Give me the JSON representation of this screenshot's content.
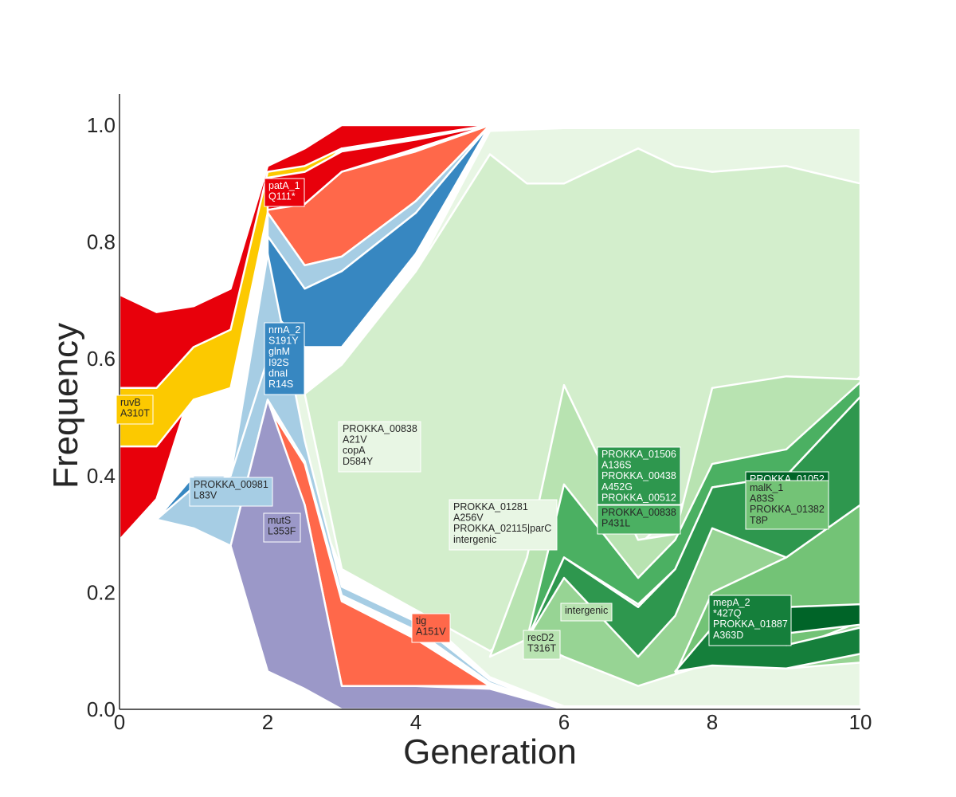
{
  "chart_data": {
    "type": "area",
    "title": "",
    "xlabel": "Generation",
    "ylabel": "Frequency",
    "xlim": [
      0,
      10
    ],
    "ylim": [
      0,
      1.05
    ],
    "xticks": [
      "0",
      "2",
      "4",
      "6",
      "8",
      "10"
    ],
    "yticks": [
      "0.0",
      "0.2",
      "0.4",
      "0.6",
      "0.8",
      "1.0"
    ],
    "grid": false,
    "legend": "none",
    "series": [
      {
        "color": "#e8000b",
        "upper": [
          [
            0,
            0.71
          ],
          [
            0.5,
            0.68
          ],
          [
            1,
            0.69
          ],
          [
            1.5,
            0.72
          ],
          [
            2,
            0.93
          ],
          [
            2.5,
            0.96
          ],
          [
            3,
            1.0
          ],
          [
            4,
            1.0
          ],
          [
            5,
            1.0
          ]
        ],
        "lower": [
          [
            0,
            0.29
          ],
          [
            0.5,
            0.36
          ],
          [
            1,
            0.56
          ],
          [
            1.5,
            0.62
          ],
          [
            2,
            0.89
          ],
          [
            2.5,
            0.9
          ],
          [
            3,
            0.96
          ],
          [
            4,
            0.98
          ],
          [
            5,
            1.0
          ]
        ]
      },
      {
        "color": "#fcc900",
        "upper": [
          [
            0,
            0.55
          ],
          [
            0.5,
            0.55
          ],
          [
            1,
            0.62
          ],
          [
            1.5,
            0.65
          ],
          [
            2,
            0.92
          ],
          [
            2.5,
            0.93
          ],
          [
            3,
            0.96
          ]
        ],
        "lower": [
          [
            0,
            0.45
          ],
          [
            0.5,
            0.45
          ],
          [
            1,
            0.53
          ],
          [
            1.5,
            0.55
          ],
          [
            2,
            0.85
          ]
        ]
      },
      {
        "color": "#e8000b",
        "upper": [
          [
            2,
            0.91
          ],
          [
            2.5,
            0.92
          ],
          [
            3,
            0.955
          ],
          [
            4,
            0.975
          ],
          [
            5,
            1.0
          ]
        ],
        "lower": [
          [
            2,
            0.855
          ],
          [
            2.5,
            0.865
          ],
          [
            3,
            0.92
          ],
          [
            4,
            0.96
          ],
          [
            5,
            1.0
          ]
        ]
      },
      {
        "color": "#ff684a",
        "upper": [
          [
            2,
            0.855
          ],
          [
            2.5,
            0.865
          ],
          [
            3,
            0.92
          ],
          [
            4,
            0.955
          ],
          [
            5,
            1.0
          ]
        ],
        "lower": [
          [
            2,
            0.85
          ],
          [
            2.5,
            0.76
          ],
          [
            3,
            0.775
          ],
          [
            4,
            0.87
          ],
          [
            5,
            1.0
          ]
        ]
      },
      {
        "color": "#a6cde4",
        "upper": [
          [
            2,
            0.85
          ],
          [
            2.5,
            0.76
          ],
          [
            3,
            0.775
          ],
          [
            4,
            0.87
          ],
          [
            5,
            1.0
          ]
        ],
        "lower": [
          [
            2,
            0.81
          ],
          [
            2.5,
            0.72
          ],
          [
            3,
            0.75
          ],
          [
            4,
            0.85
          ],
          [
            5,
            1.0
          ]
        ]
      },
      {
        "color": "#3787c1",
        "upper": [
          [
            2,
            0.81
          ],
          [
            2.5,
            0.72
          ],
          [
            3,
            0.75
          ],
          [
            4,
            0.85
          ],
          [
            5,
            1.0
          ]
        ],
        "lower": [
          [
            2,
            0.69
          ],
          [
            2.5,
            0.62
          ],
          [
            3,
            0.62
          ],
          [
            4,
            0.78
          ],
          [
            5,
            1.0
          ]
        ]
      },
      {
        "color": "#e8f6e4",
        "upper": [
          [
            2,
            0.69
          ],
          [
            2.5,
            0.54
          ],
          [
            3,
            0.59
          ],
          [
            4,
            0.75
          ],
          [
            5,
            0.99
          ],
          [
            6,
            0.995
          ],
          [
            7,
            0.995
          ],
          [
            8,
            0.995
          ],
          [
            9,
            0.995
          ],
          [
            10,
            0.995
          ]
        ],
        "lower": [
          [
            2,
            0.54
          ],
          [
            3,
            0.24
          ],
          [
            4,
            0.17
          ],
          [
            5,
            0.055
          ],
          [
            6,
            0.005
          ],
          [
            10,
            0.005
          ]
        ]
      },
      {
        "color": "#d3eecc",
        "upper": [
          [
            2.5,
            0.54
          ],
          [
            3,
            0.59
          ],
          [
            4,
            0.75
          ],
          [
            5,
            0.95
          ],
          [
            5.5,
            0.9
          ],
          [
            6,
            0.9
          ],
          [
            7,
            0.96
          ],
          [
            7.5,
            0.93
          ],
          [
            8,
            0.92
          ],
          [
            9,
            0.93
          ],
          [
            10,
            0.9
          ]
        ],
        "lower": [
          [
            2.5,
            0.54
          ],
          [
            3,
            0.24
          ],
          [
            4,
            0.17
          ],
          [
            5,
            0.1
          ],
          [
            5.5,
            0.14
          ],
          [
            6,
            0.27
          ],
          [
            7,
            0.28
          ],
          [
            8,
            0.4
          ],
          [
            9,
            0.45
          ],
          [
            10,
            0.57
          ]
        ]
      },
      {
        "color": "#b8e3b1",
        "upper": [
          [
            5,
            0.09
          ],
          [
            5.5,
            0.26
          ],
          [
            6,
            0.555
          ],
          [
            7,
            0.29
          ],
          [
            7.5,
            0.3
          ],
          [
            8,
            0.55
          ],
          [
            9,
            0.57
          ],
          [
            10,
            0.565
          ]
        ],
        "lower": [
          [
            5,
            0.09
          ],
          [
            5.5,
            0.12
          ],
          [
            6,
            0.24
          ],
          [
            7,
            0.12
          ],
          [
            7.5,
            0.12
          ],
          [
            8,
            0.3
          ],
          [
            9,
            0.4
          ],
          [
            10,
            0.55
          ]
        ]
      },
      {
        "color": "#97d494",
        "upper": [
          [
            5.5,
            0.12
          ],
          [
            6,
            0.23
          ],
          [
            7,
            0.11
          ],
          [
            7.5,
            0.2
          ],
          [
            8,
            0.32
          ],
          [
            9,
            0.4
          ],
          [
            10,
            0.52
          ]
        ],
        "lower": [
          [
            5.5,
            0.12
          ],
          [
            6,
            0.09
          ],
          [
            7,
            0.04
          ],
          [
            7.5,
            0.06
          ],
          [
            8,
            0.08
          ],
          [
            9,
            0.07
          ],
          [
            10,
            0.08
          ]
        ]
      },
      {
        "color": "#73c376",
        "upper": [
          [
            7.5,
            0.06
          ],
          [
            8,
            0.2
          ],
          [
            9,
            0.26
          ],
          [
            10,
            0.35
          ]
        ],
        "lower": [
          [
            7.5,
            0.06
          ],
          [
            8,
            0.12
          ],
          [
            9,
            0.1
          ],
          [
            10,
            0.15
          ]
        ]
      },
      {
        "color": "#4bb062",
        "upper": [
          [
            5.5,
            0.12
          ],
          [
            6,
            0.385
          ],
          [
            7,
            0.225
          ],
          [
            7.5,
            0.29
          ],
          [
            8,
            0.42
          ],
          [
            9,
            0.445
          ],
          [
            10,
            0.56
          ]
        ],
        "lower": [
          [
            5.5,
            0.12
          ],
          [
            6,
            0.26
          ],
          [
            7,
            0.18
          ],
          [
            7.5,
            0.24
          ],
          [
            8,
            0.38
          ],
          [
            9,
            0.4
          ],
          [
            10,
            0.535
          ]
        ]
      },
      {
        "color": "#2e974e",
        "upper": [
          [
            5.5,
            0.12
          ],
          [
            6,
            0.26
          ],
          [
            7,
            0.175
          ],
          [
            7.5,
            0.24
          ],
          [
            8,
            0.38
          ],
          [
            9,
            0.4
          ],
          [
            10,
            0.535
          ]
        ],
        "lower": [
          [
            5.5,
            0.12
          ],
          [
            6,
            0.225
          ],
          [
            7,
            0.09
          ],
          [
            7.5,
            0.16
          ],
          [
            8,
            0.31
          ],
          [
            9,
            0.26
          ],
          [
            10,
            0.35
          ]
        ]
      },
      {
        "color": "#157f3b",
        "upper": [
          [
            7.5,
            0.065
          ],
          [
            8,
            0.14
          ],
          [
            9,
            0.11
          ],
          [
            10,
            0.14
          ]
        ],
        "lower": [
          [
            7.5,
            0.065
          ],
          [
            8,
            0.075
          ],
          [
            9,
            0.07
          ],
          [
            10,
            0.095
          ]
        ]
      },
      {
        "color": "#006428",
        "upper": [
          [
            8,
            0.17
          ],
          [
            9,
            0.175
          ],
          [
            10,
            0.18
          ]
        ],
        "lower": [
          [
            8,
            0.12
          ],
          [
            9,
            0.13
          ],
          [
            10,
            0.145
          ]
        ]
      },
      {
        "color": "#a6cde4",
        "upper": [
          [
            0.5,
            0.325
          ],
          [
            1,
            0.4
          ],
          [
            1.5,
            0.4
          ],
          [
            2,
            0.78
          ],
          [
            2.5,
            0.46
          ],
          [
            3,
            0.21
          ],
          [
            4,
            0.15
          ],
          [
            5,
            0.05
          ],
          [
            6,
            0.0
          ]
        ],
        "lower": [
          [
            0.5,
            0.325
          ],
          [
            1,
            0.31
          ],
          [
            1.5,
            0.28
          ],
          [
            2,
            0.53
          ],
          [
            2.5,
            0.425
          ],
          [
            3,
            0.195
          ],
          [
            4,
            0.135
          ],
          [
            5,
            0.045
          ],
          [
            6,
            0.0
          ]
        ]
      },
      {
        "color": "#3787c1",
        "upper": [
          [
            0.5,
            0.325
          ],
          [
            1,
            0.38
          ],
          [
            1.5,
            0.4
          ],
          [
            2,
            0.6
          ]
        ],
        "lower": [
          [
            0.5,
            0.325
          ],
          [
            1,
            0.4
          ],
          [
            1.5,
            0.4
          ],
          [
            2,
            0.6
          ]
        ]
      },
      {
        "color": "#ff684a",
        "upper": [
          [
            2,
            0.52
          ],
          [
            2.5,
            0.42
          ],
          [
            3,
            0.185
          ],
          [
            4,
            0.12
          ],
          [
            5,
            0.04
          ]
        ],
        "lower": [
          [
            2,
            0.52
          ],
          [
            2.5,
            0.35
          ],
          [
            3,
            0.04
          ],
          [
            4,
            0.04
          ],
          [
            5,
            0.04
          ]
        ]
      },
      {
        "color": "#9b98c8",
        "upper": [
          [
            1.5,
            0.28
          ],
          [
            2,
            0.53
          ],
          [
            2.5,
            0.35
          ],
          [
            3,
            0.04
          ],
          [
            4,
            0.04
          ],
          [
            5,
            0.035
          ],
          [
            6,
            0.0
          ]
        ],
        "lower": [
          [
            1.5,
            0.28
          ],
          [
            2,
            0.065
          ],
          [
            2.5,
            0.035
          ],
          [
            3,
            0.0
          ],
          [
            6,
            0.0
          ]
        ]
      }
    ],
    "annotations": [
      {
        "lines": [
          "patA_1",
          "Q111*"
        ],
        "bg": "#e8000b",
        "fg": "#ffffff"
      },
      {
        "lines": [
          "ruvB",
          "A310T"
        ],
        "bg": "#fcc900",
        "fg": "#262626"
      },
      {
        "lines": [
          "nrnA_2",
          "S191Y",
          "glnM",
          "I92S",
          "dnaI",
          "R14S"
        ],
        "bg": "#3787c1",
        "fg": "#ffffff"
      },
      {
        "lines": [
          "PROKKA_00981",
          "L83V"
        ],
        "bg": "#a6cde4",
        "fg": "#262626"
      },
      {
        "lines": [
          "mutS",
          "L353F"
        ],
        "bg": "#9b98c8",
        "fg": "#262626"
      },
      {
        "lines": [
          "PROKKA_00838",
          "A21V",
          "copA",
          "D584Y"
        ],
        "bg": "#e8f6e4",
        "fg": "#262626"
      },
      {
        "lines": [
          "PROKKA_01281",
          "A256V",
          "PROKKA_02115|parC",
          "intergenic"
        ],
        "bg": "#e8f6e4",
        "fg": "#262626"
      },
      {
        "lines": [
          "tig",
          "A151V"
        ],
        "bg": "#ff684a",
        "fg": "#262626"
      },
      {
        "lines": [
          "recD2",
          "T316T"
        ],
        "bg": "#b8e3b1",
        "fg": "#262626"
      },
      {
        "lines": [
          "intergenic"
        ],
        "bg": "#b8e3b1",
        "fg": "#262626"
      },
      {
        "lines": [
          "PROKKA_01506",
          "A136S",
          "PROKKA_00438",
          "A452G",
          "PROKKA_00512"
        ],
        "bg": "#2e974e",
        "fg": "#ffffff"
      },
      {
        "lines": [
          "PROKKA_00838",
          "P431L"
        ],
        "bg": "#4bb062",
        "fg": "#262626"
      },
      {
        "lines": [
          "PROKKA_01052"
        ],
        "bg": "#006428",
        "fg": "#ffffff"
      },
      {
        "lines": [
          "malK_1",
          "A83S",
          "PROKKA_01382",
          "T8P"
        ],
        "bg": "#73c376",
        "fg": "#262626"
      },
      {
        "lines": [
          "mepA_2",
          "*427Q",
          "PROKKA_01887",
          "A363D"
        ],
        "bg": "#157f3b",
        "fg": "#ffffff"
      }
    ]
  }
}
